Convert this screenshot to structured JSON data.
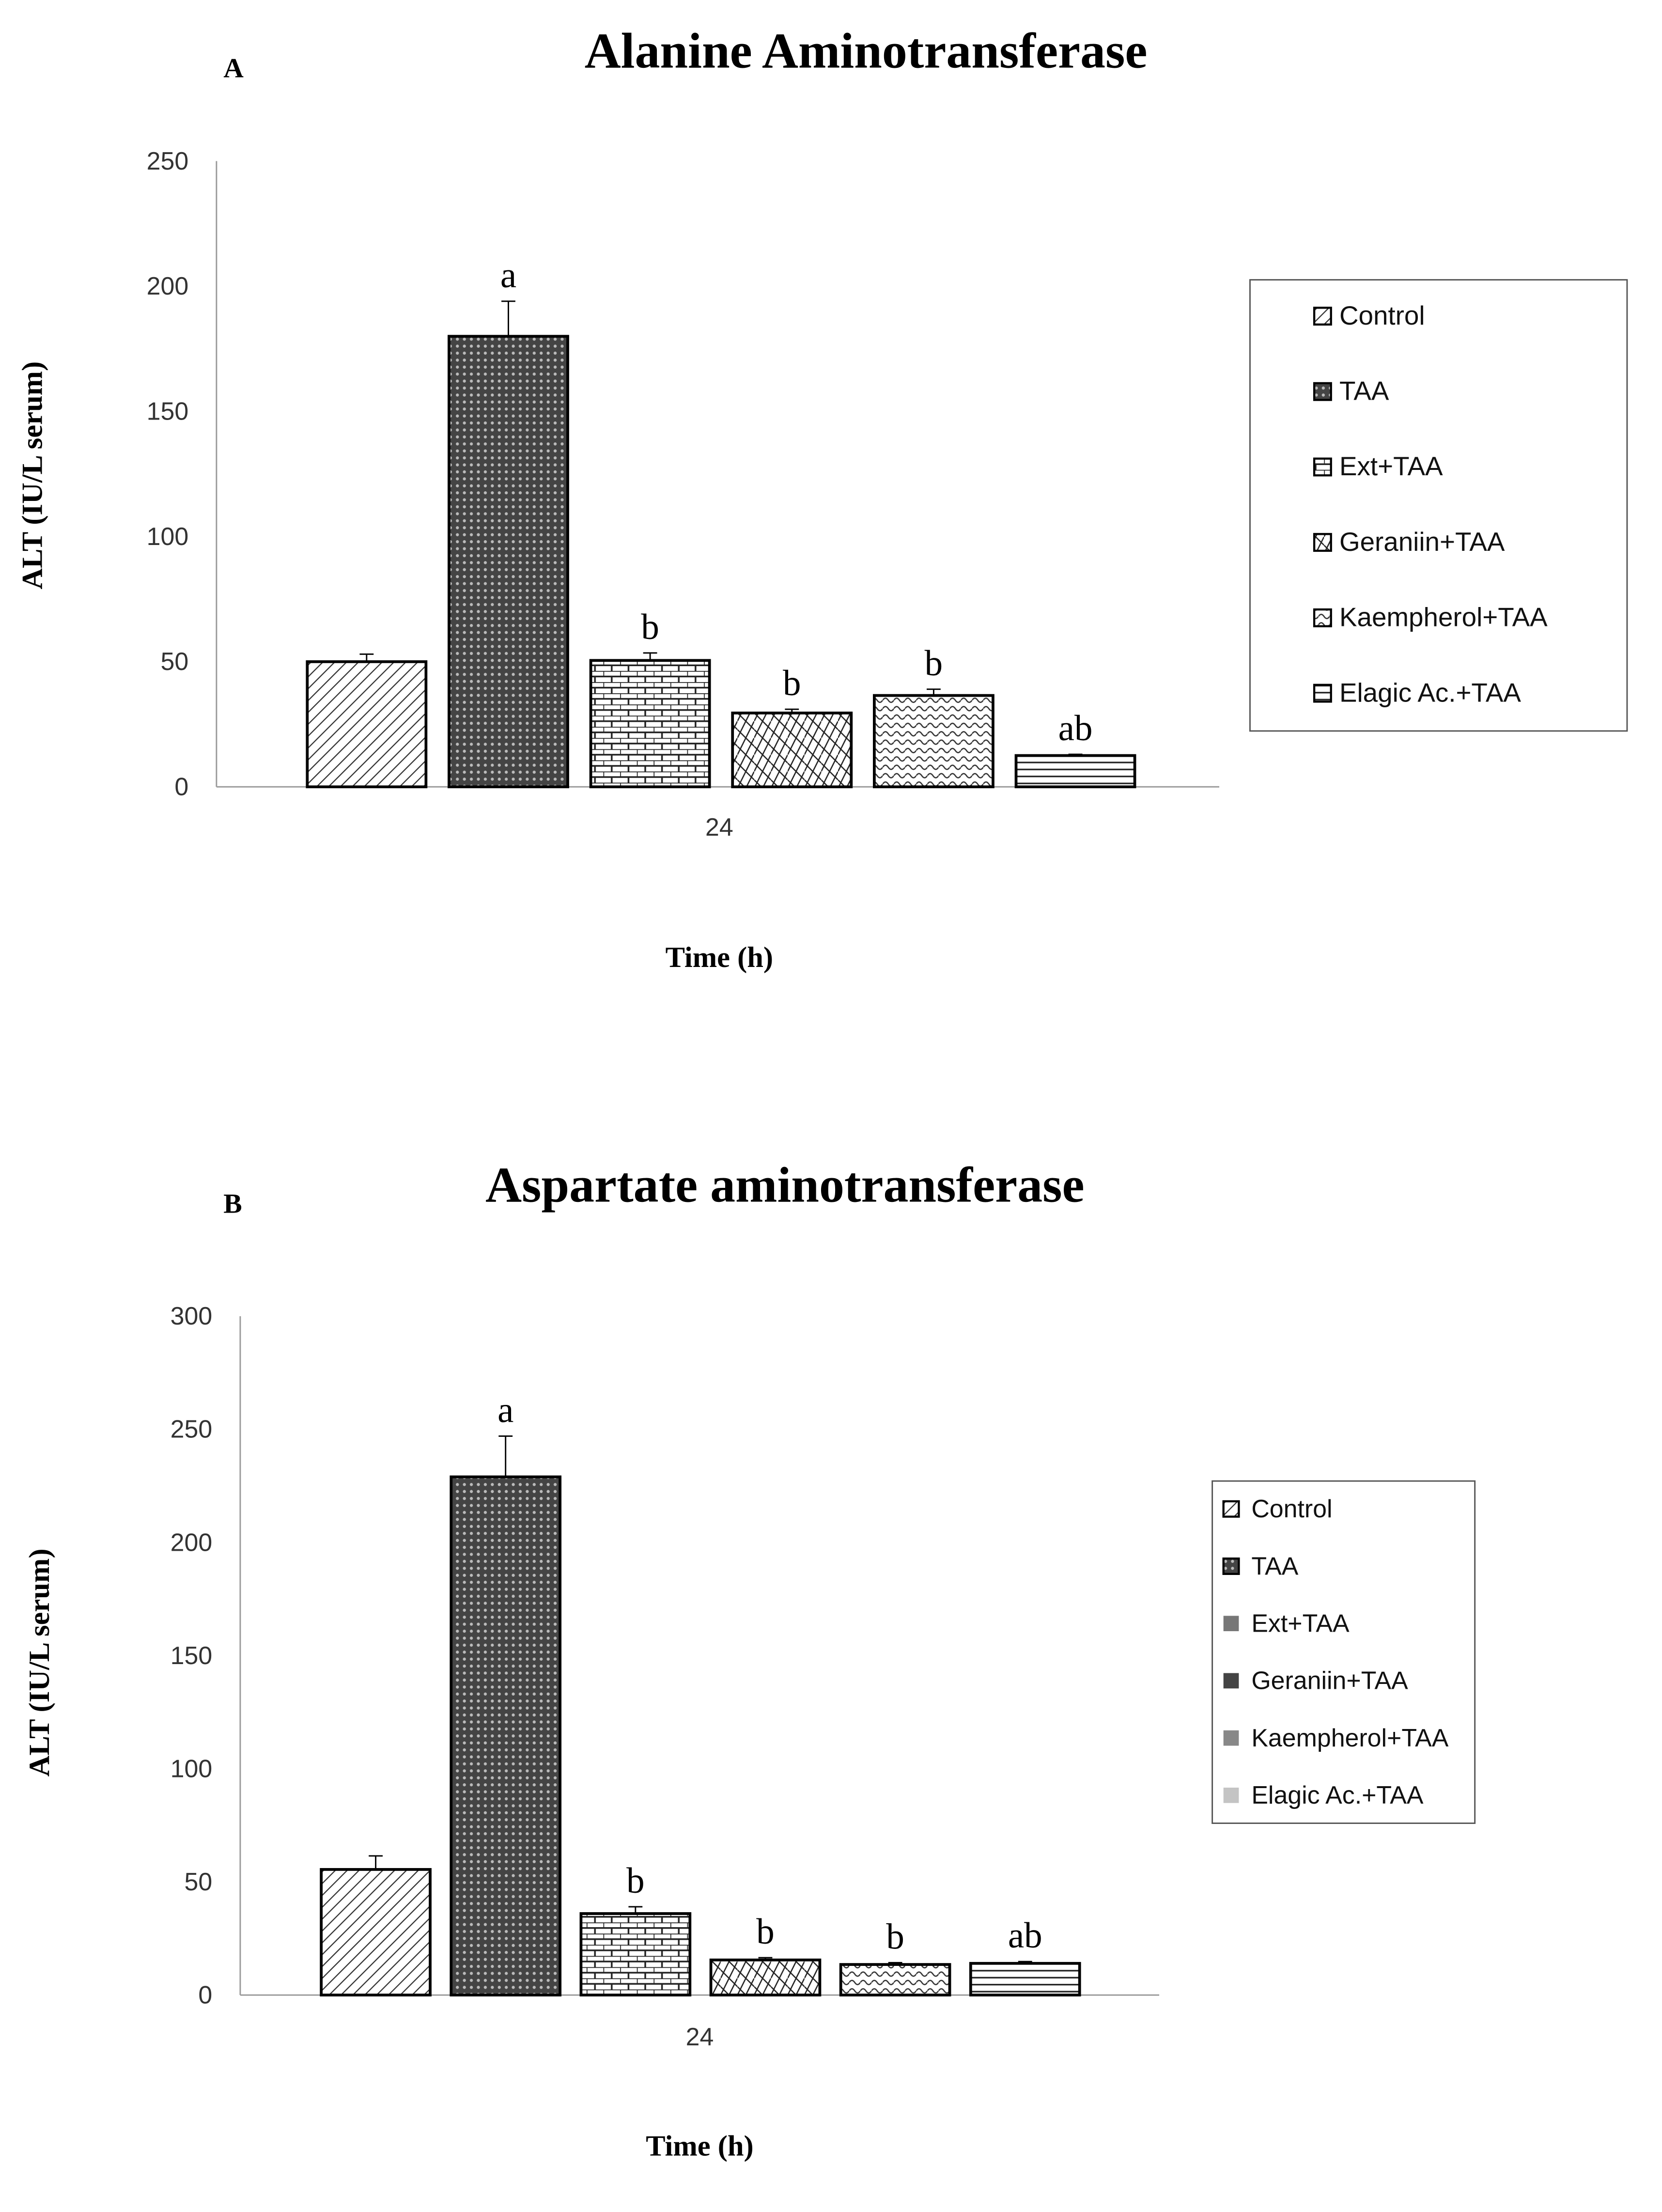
{
  "chart_data": [
    {
      "type": "bar",
      "panel_label": "A",
      "title": "Alanine Aminotransferase",
      "xlabel": "Time (h)",
      "ylabel": "ALT (IU/L serum)",
      "categories": [
        "24"
      ],
      "ylim": [
        0,
        250
      ],
      "yticks": [
        0,
        50,
        100,
        150,
        200,
        250
      ],
      "grid": false,
      "legend_position": "right",
      "series": [
        {
          "name": "Control",
          "values": [
            50
          ],
          "error": [
            3
          ],
          "label": "",
          "pattern": "diag"
        },
        {
          "name": "TAA",
          "values": [
            180
          ],
          "error": [
            14
          ],
          "label": "a",
          "pattern": "mesh"
        },
        {
          "name": "Ext+TAA",
          "values": [
            50.5
          ],
          "error": [
            3
          ],
          "label": "b",
          "pattern": "brick"
        },
        {
          "name": "Geraniin+TAA",
          "values": [
            29.5
          ],
          "error": [
            1.5
          ],
          "label": "b",
          "pattern": "weave"
        },
        {
          "name": "Kaempherol+TAA",
          "values": [
            36.5
          ],
          "error": [
            2.5
          ],
          "label": "b",
          "pattern": "wave"
        },
        {
          "name": "Elagic Ac.+TAA",
          "values": [
            12.5
          ],
          "error": [
            0.5
          ],
          "label": "ab",
          "pattern": "hlines"
        }
      ]
    },
    {
      "type": "bar",
      "panel_label": "B",
      "title": "Aspartate aminotransferase",
      "xlabel": "Time (h)",
      "ylabel": "ALT (IU/L serum)",
      "categories": [
        "24"
      ],
      "ylim": [
        0,
        300
      ],
      "yticks": [
        0,
        50,
        100,
        150,
        200,
        250,
        300
      ],
      "grid": false,
      "legend_position": "right",
      "legend_swatch_colors": [
        "#ffffff",
        "#222222",
        "#777777",
        "#444444",
        "#888888",
        "#c4c4c4"
      ],
      "series": [
        {
          "name": "Control",
          "values": [
            55.5
          ],
          "error": [
            6
          ],
          "label": "",
          "pattern": "diag"
        },
        {
          "name": "TAA",
          "values": [
            229
          ],
          "error": [
            18
          ],
          "label": "a",
          "pattern": "mesh"
        },
        {
          "name": "Ext+TAA",
          "values": [
            36
          ],
          "error": [
            3
          ],
          "label": "b",
          "pattern": "brick"
        },
        {
          "name": "Geraniin+TAA",
          "values": [
            15.5
          ],
          "error": [
            1
          ],
          "label": "b",
          "pattern": "weave"
        },
        {
          "name": "Kaempherol+TAA",
          "values": [
            13.5
          ],
          "error": [
            0.8
          ],
          "label": "b",
          "pattern": "wave"
        },
        {
          "name": "Elagic Ac.+TAA",
          "values": [
            14
          ],
          "error": [
            0.8
          ],
          "label": "ab",
          "pattern": "hlines"
        }
      ]
    }
  ]
}
